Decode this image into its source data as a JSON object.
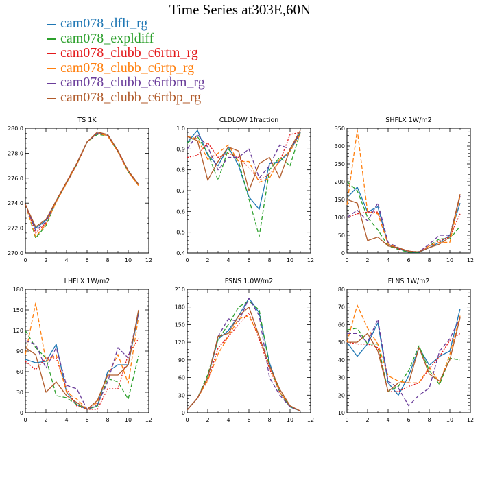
{
  "title": "Time Series at303E,60N",
  "legend": [
    {
      "label": "cam078_dflt_rg",
      "color": "#1f77b4",
      "dash": ""
    },
    {
      "label": "cam078_expldiff",
      "color": "#2ca02c",
      "dash": "6,3"
    },
    {
      "label": "cam078_clubb_c6rtm_rg",
      "color": "#e31a1c",
      "dash": "2,2"
    },
    {
      "label": "cam078_clubb_c6rtp_rg",
      "color": "#ff7f0e",
      "dash": "6,3"
    },
    {
      "label": "cam078_clubb_c6rtbm_rg",
      "color": "#6a3d9a",
      "dash": "6,3"
    },
    {
      "label": "cam078_clubb_c6rtbp_rg",
      "color": "#b05a2a",
      "dash": ""
    }
  ],
  "chart_data": [
    {
      "type": "line",
      "title": "TS   1K",
      "x": [
        0,
        1,
        2,
        3,
        4,
        5,
        6,
        7,
        8,
        9,
        10,
        11
      ],
      "xlim": [
        0,
        12
      ],
      "xticks": [
        0,
        2,
        4,
        6,
        8,
        10,
        12
      ],
      "ylim": [
        270,
        280
      ],
      "yticks": [
        270,
        272,
        274,
        276,
        278,
        280
      ],
      "ytick_labels": [
        "270.0",
        "272.0",
        "274.0",
        "276.0",
        "278.0",
        "280.0"
      ],
      "series": [
        {
          "name": "cam078_dflt_rg",
          "values": [
            273.9,
            272.0,
            272.6,
            274.2,
            275.6,
            277.1,
            278.9,
            279.6,
            279.5,
            278.2,
            276.6,
            275.5
          ]
        },
        {
          "name": "cam078_expldiff",
          "values": [
            273.9,
            271.2,
            272.2,
            274.1,
            275.6,
            277.1,
            278.9,
            279.5,
            279.4,
            278.1,
            276.5,
            275.4
          ]
        },
        {
          "name": "cam078_clubb_c6rtm_rg",
          "values": [
            273.9,
            271.6,
            272.4,
            274.1,
            275.6,
            277.1,
            278.9,
            279.6,
            279.4,
            278.1,
            276.5,
            275.4
          ]
        },
        {
          "name": "cam078_clubb_c6rtp_rg",
          "values": [
            273.9,
            271.3,
            272.3,
            274.1,
            275.6,
            277.1,
            278.9,
            279.6,
            279.4,
            278.1,
            276.5,
            275.4
          ]
        },
        {
          "name": "cam078_clubb_c6rtbm_rg",
          "values": [
            273.9,
            271.8,
            272.5,
            274.2,
            275.7,
            277.2,
            278.9,
            279.6,
            279.5,
            278.2,
            276.6,
            275.5
          ]
        },
        {
          "name": "cam078_clubb_c6rtbp_rg",
          "values": [
            273.9,
            272.1,
            272.7,
            274.2,
            275.7,
            277.2,
            278.9,
            279.7,
            279.5,
            278.2,
            276.6,
            275.5
          ]
        }
      ]
    },
    {
      "type": "line",
      "title": "CLDLOW   1fraction",
      "x": [
        0,
        1,
        2,
        3,
        4,
        5,
        6,
        7,
        8,
        9,
        10,
        11
      ],
      "xlim": [
        0,
        12
      ],
      "xticks": [
        0,
        2,
        4,
        6,
        8,
        10,
        12
      ],
      "ylim": [
        0.4,
        1.0
      ],
      "yticks": [
        0.4,
        0.5,
        0.6,
        0.7,
        0.8,
        0.9,
        1.0
      ],
      "ytick_labels": [
        "0.4",
        "0.5",
        "0.6",
        "0.7",
        "0.8",
        "0.9",
        "1.0"
      ],
      "series": [
        {
          "name": "cam078_dflt_rg",
          "values": [
            0.93,
            0.99,
            0.87,
            0.82,
            0.91,
            0.82,
            0.67,
            0.61,
            0.83,
            0.84,
            0.89,
            0.98
          ]
        },
        {
          "name": "cam078_expldiff",
          "values": [
            0.93,
            0.96,
            0.88,
            0.75,
            0.9,
            0.84,
            0.66,
            0.48,
            0.8,
            0.86,
            0.82,
            0.98
          ]
        },
        {
          "name": "cam078_clubb_c6rtm_rg",
          "values": [
            0.86,
            0.87,
            0.93,
            0.86,
            0.88,
            0.86,
            0.81,
            0.75,
            0.78,
            0.84,
            0.97,
            0.98
          ]
        },
        {
          "name": "cam078_clubb_c6rtp_rg",
          "values": [
            0.96,
            0.95,
            0.85,
            0.88,
            0.92,
            0.84,
            0.84,
            0.74,
            0.76,
            0.85,
            0.89,
            0.97
          ]
        },
        {
          "name": "cam078_clubb_c6rtbm_rg",
          "values": [
            0.9,
            0.97,
            0.91,
            0.8,
            0.86,
            0.86,
            0.9,
            0.76,
            0.82,
            0.92,
            0.9,
            0.98
          ]
        },
        {
          "name": "cam078_clubb_c6rtbp_rg",
          "values": [
            0.96,
            0.94,
            0.75,
            0.84,
            0.91,
            0.89,
            0.7,
            0.83,
            0.86,
            0.76,
            0.9,
            0.99
          ]
        }
      ]
    },
    {
      "type": "line",
      "title": "SHFLX   1W/m2",
      "x": [
        0,
        1,
        2,
        3,
        4,
        5,
        6,
        7,
        8,
        9,
        10,
        11
      ],
      "xlim": [
        0,
        12
      ],
      "xticks": [
        0,
        2,
        4,
        6,
        8,
        10,
        12
      ],
      "ylim": [
        0,
        350
      ],
      "yticks": [
        0,
        50,
        100,
        150,
        200,
        250,
        300,
        350
      ],
      "ytick_labels": [
        "0",
        "50",
        "100",
        "150",
        "200",
        "250",
        "300",
        "350"
      ],
      "series": [
        {
          "name": "cam078_dflt_rg",
          "values": [
            155,
            185,
            115,
            130,
            25,
            12,
            2,
            2,
            15,
            30,
            50,
            140
          ]
        },
        {
          "name": "cam078_expldiff",
          "values": [
            200,
            175,
            100,
            65,
            20,
            10,
            2,
            2,
            20,
            40,
            40,
            75
          ]
        },
        {
          "name": "cam078_clubb_c6rtm_rg",
          "values": [
            100,
            110,
            115,
            115,
            25,
            12,
            5,
            3,
            20,
            35,
            45,
            110
          ]
        },
        {
          "name": "cam078_clubb_c6rtp_rg",
          "values": [
            135,
            345,
            115,
            110,
            25,
            15,
            5,
            3,
            20,
            30,
            30,
            160
          ]
        },
        {
          "name": "cam078_clubb_c6rtbm_rg",
          "values": [
            100,
            120,
            90,
            140,
            30,
            15,
            5,
            3,
            25,
            50,
            50,
            160
          ]
        },
        {
          "name": "cam078_clubb_c6rtbp_rg",
          "values": [
            150,
            140,
            35,
            45,
            20,
            15,
            5,
            3,
            15,
            25,
            45,
            165
          ]
        }
      ]
    },
    {
      "type": "line",
      "title": "LHFLX   1W/m2",
      "x": [
        0,
        1,
        2,
        3,
        4,
        5,
        6,
        7,
        8,
        9,
        10,
        11
      ],
      "xlim": [
        0,
        12
      ],
      "xticks": [
        0,
        2,
        4,
        6,
        8,
        10,
        12
      ],
      "ylim": [
        0,
        180
      ],
      "yticks": [
        0,
        30,
        60,
        90,
        120,
        150,
        180
      ],
      "ytick_labels": [
        "0",
        "30",
        "60",
        "90",
        "120",
        "150",
        "180"
      ],
      "series": [
        {
          "name": "cam078_dflt_rg",
          "values": [
            78,
            73,
            75,
            100,
            30,
            12,
            5,
            10,
            60,
            70,
            70,
            145
          ]
        },
        {
          "name": "cam078_expldiff",
          "values": [
            120,
            95,
            80,
            25,
            22,
            12,
            5,
            10,
            50,
            45,
            20,
            83
          ]
        },
        {
          "name": "cam078_clubb_c6rtm_rg",
          "values": [
            75,
            63,
            80,
            80,
            35,
            10,
            5,
            5,
            35,
            35,
            85,
            108
          ]
        },
        {
          "name": "cam078_clubb_c6rtp_rg",
          "values": [
            85,
            160,
            75,
            85,
            30,
            20,
            5,
            15,
            55,
            85,
            43,
            140
          ]
        },
        {
          "name": "cam078_clubb_c6rtbm_rg",
          "values": [
            105,
            100,
            65,
            95,
            40,
            35,
            5,
            12,
            45,
            95,
            80,
            145
          ]
        },
        {
          "name": "cam078_clubb_c6rtbp_rg",
          "values": [
            95,
            85,
            30,
            45,
            25,
            15,
            5,
            18,
            55,
            55,
            70,
            150
          ]
        }
      ]
    },
    {
      "type": "line",
      "title": "FSNS   1.0W/m2",
      "x": [
        0,
        1,
        2,
        3,
        4,
        5,
        6,
        7,
        8,
        9,
        10,
        11
      ],
      "xlim": [
        0,
        12
      ],
      "xticks": [
        0,
        2,
        4,
        6,
        8,
        10,
        12
      ],
      "ylim": [
        0,
        210
      ],
      "yticks": [
        0,
        30,
        60,
        90,
        120,
        150,
        180,
        210
      ],
      "ytick_labels": [
        "0",
        "30",
        "60",
        "90",
        "120",
        "150",
        "180",
        "210"
      ],
      "series": [
        {
          "name": "cam078_dflt_rg",
          "values": [
            5,
            25,
            60,
            125,
            140,
            165,
            195,
            170,
            85,
            35,
            10,
            3
          ]
        },
        {
          "name": "cam078_expldiff",
          "values": [
            5,
            25,
            65,
            125,
            150,
            180,
            190,
            175,
            80,
            35,
            10,
            3
          ]
        },
        {
          "name": "cam078_clubb_c6rtm_rg",
          "values": [
            5,
            25,
            55,
            110,
            130,
            150,
            170,
            125,
            75,
            35,
            12,
            3
          ]
        },
        {
          "name": "cam078_clubb_c6rtp_rg",
          "values": [
            5,
            25,
            55,
            100,
            130,
            160,
            165,
            130,
            80,
            35,
            12,
            3
          ]
        },
        {
          "name": "cam078_clubb_c6rtbm_rg",
          "values": [
            5,
            25,
            60,
            130,
            160,
            155,
            195,
            165,
            60,
            30,
            10,
            3
          ]
        },
        {
          "name": "cam078_clubb_c6rtbp_rg",
          "values": [
            5,
            25,
            60,
            130,
            135,
            165,
            180,
            130,
            80,
            40,
            12,
            3
          ]
        }
      ]
    },
    {
      "type": "line",
      "title": "FLNS   1W/m2",
      "x": [
        0,
        1,
        2,
        3,
        4,
        5,
        6,
        7,
        8,
        9,
        10,
        11
      ],
      "xlim": [
        0,
        12
      ],
      "xticks": [
        0,
        2,
        4,
        6,
        8,
        10,
        12
      ],
      "ylim": [
        10,
        80
      ],
      "yticks": [
        10,
        20,
        30,
        40,
        50,
        60,
        70,
        80
      ],
      "ytick_labels": [
        "10",
        "20",
        "30",
        "40",
        "50",
        "60",
        "70",
        "80"
      ],
      "series": [
        {
          "name": "cam078_dflt_rg",
          "values": [
            50,
            42,
            49,
            61,
            27,
            20,
            31,
            47,
            37,
            42,
            45,
            69
          ]
        },
        {
          "name": "cam078_expldiff",
          "values": [
            57,
            58,
            49,
            49,
            22,
            25,
            34,
            48,
            34,
            26,
            41,
            40
          ]
        },
        {
          "name": "cam078_clubb_c6rtm_rg",
          "values": [
            50,
            49,
            49,
            47,
            22,
            22,
            25,
            27,
            35,
            42,
            51,
            55
          ]
        },
        {
          "name": "cam078_clubb_c6rtp_rg",
          "values": [
            50,
            71,
            58,
            49,
            31,
            28,
            27,
            27,
            36,
            27,
            43,
            65
          ]
        },
        {
          "name": "cam078_clubb_c6rtbm_rg",
          "values": [
            55,
            55,
            50,
            63,
            28,
            24,
            14,
            20,
            24,
            45,
            52,
            64
          ]
        },
        {
          "name": "cam078_clubb_c6rtbp_rg",
          "values": [
            50,
            50,
            55,
            45,
            22,
            27,
            27,
            47,
            32,
            28,
            40,
            64
          ]
        }
      ]
    }
  ]
}
